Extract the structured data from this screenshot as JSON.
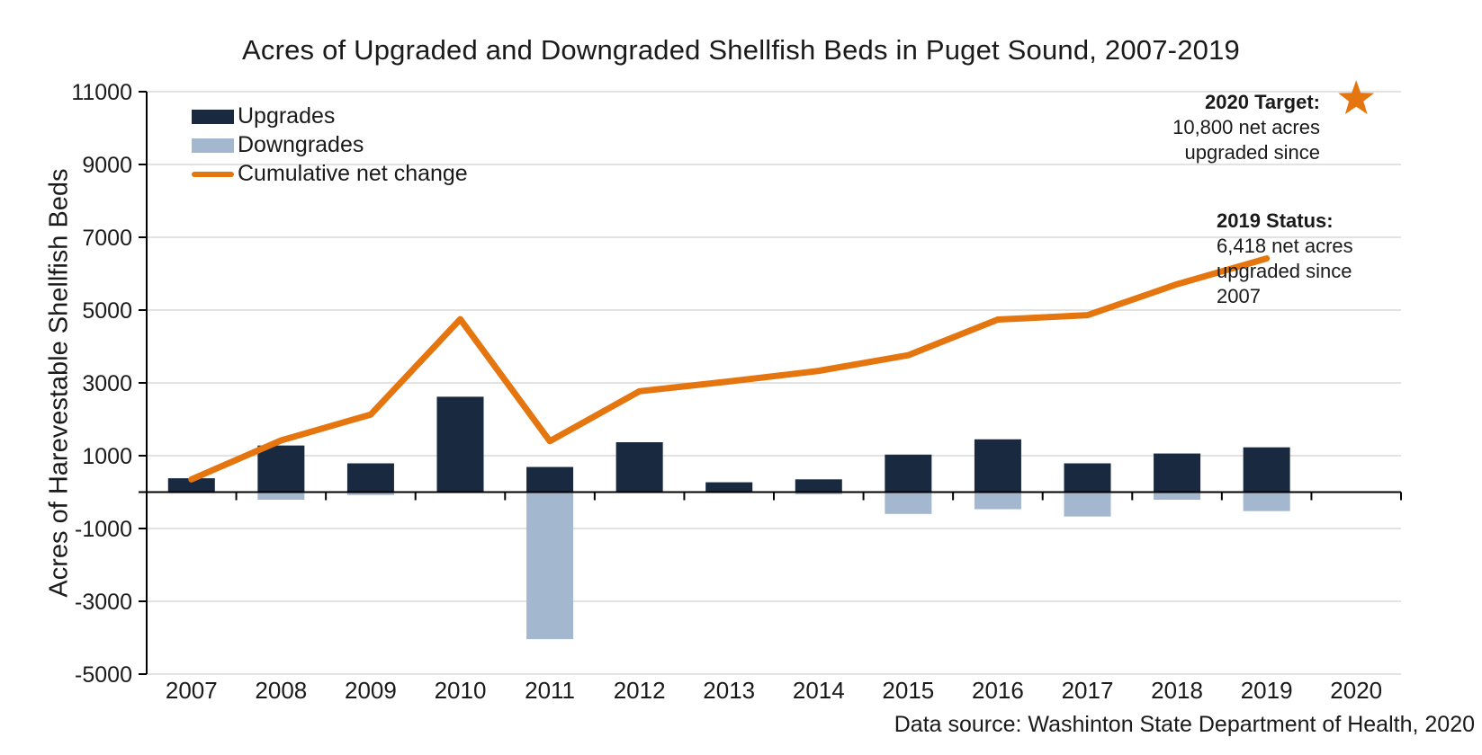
{
  "title": "Acres of Upgraded and Downgraded Shellfish Beds in Puget Sound, 2007-2019",
  "source_note": "Data source: Washinton State Department of Health, 2020",
  "annotations": {
    "target": {
      "heading": "2020 Target:",
      "lines": [
        "10,800 net acres",
        "upgraded since"
      ],
      "marker": "star-icon",
      "marker_color": "#e4750f",
      "marker_value": 10800,
      "marker_year": "2020"
    },
    "status": {
      "heading": "2019 Status:",
      "lines": [
        "6,418 net acres",
        "upgraded since",
        "2007"
      ]
    }
  },
  "chart_data": {
    "type": "bar",
    "subtype": "bar-and-line-combo",
    "title": "Acres of Upgraded and Downgraded Shellfish Beds in Puget Sound, 2007-2019",
    "xlabel": "",
    "ylabel": "Acres of Harevestable Shellfish Beds",
    "ylim": [
      -5000,
      11000
    ],
    "yticks": [
      -5000,
      -3000,
      -1000,
      1000,
      3000,
      5000,
      7000,
      9000,
      11000
    ],
    "grid": true,
    "gridline_color": "#d9d9d9",
    "axis_color": "#000000",
    "legend_position": "top-left-inside",
    "categories": [
      "2007",
      "2008",
      "2009",
      "2010",
      "2011",
      "2012",
      "2013",
      "2014",
      "2015",
      "2016",
      "2017",
      "2018",
      "2019",
      "2020"
    ],
    "series": [
      {
        "name": "Upgrades",
        "type": "bar",
        "color": "#182940",
        "values": [
          380,
          1280,
          790,
          2620,
          690,
          1370,
          270,
          350,
          1030,
          1450,
          790,
          1060,
          1230,
          null
        ]
      },
      {
        "name": "Downgrades",
        "type": "bar",
        "color": "#a3b7cf",
        "values": [
          -30,
          -210,
          -80,
          0,
          -4040,
          0,
          0,
          -60,
          -600,
          -470,
          -670,
          -210,
          -522,
          null
        ]
      },
      {
        "name": "Cumulative net change",
        "type": "line",
        "color": "#e4750f",
        "values": [
          350,
          1420,
          2130,
          4750,
          1400,
          2770,
          3040,
          3330,
          3760,
          4740,
          4860,
          5710,
          6418,
          null
        ]
      }
    ]
  }
}
